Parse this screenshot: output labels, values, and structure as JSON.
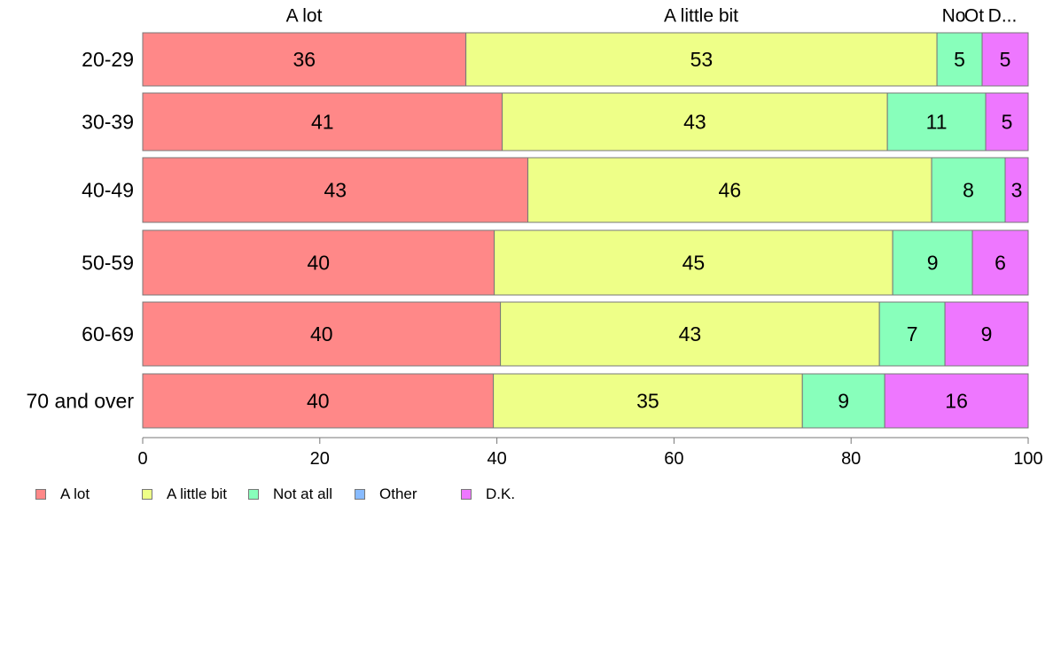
{
  "chart_data": {
    "type": "bar",
    "orientation": "horizontal",
    "stacked": true,
    "categories": [
      "20-29",
      "30-39",
      "40-49",
      "50-59",
      "60-69",
      "70 and over"
    ],
    "series": [
      {
        "name": "A lot",
        "color": "#ff8888",
        "values": [
          36,
          41,
          43,
          40,
          40,
          40
        ],
        "plotted": [
          36.5,
          40.6,
          43.5,
          39.7,
          40.4,
          39.6
        ]
      },
      {
        "name": "A little bit",
        "color": "#eeff88",
        "values": [
          53,
          43,
          46,
          45,
          43,
          35
        ],
        "plotted": [
          53.2,
          43.5,
          45.6,
          45.0,
          42.8,
          34.9
        ]
      },
      {
        "name": "Not at all",
        "color": "#88ffbb",
        "values": [
          5,
          11,
          8,
          9,
          7,
          9
        ],
        "plotted": [
          5.1,
          11.1,
          8.3,
          9.0,
          7.4,
          9.3
        ]
      },
      {
        "name": "Other",
        "color": "#88bbff",
        "values": [
          0,
          0,
          0,
          0,
          0,
          0
        ],
        "plotted": [
          0,
          0,
          0,
          0,
          0,
          0
        ]
      },
      {
        "name": "D.K.",
        "color": "#ee77ff",
        "values": [
          5,
          5,
          3,
          6,
          9,
          16
        ],
        "plotted": [
          5.2,
          4.8,
          2.6,
          6.3,
          9.4,
          16.2
        ]
      }
    ],
    "top_labels": [
      "A lot",
      "A little bit",
      "No",
      "Ot",
      "D..."
    ],
    "xlim": [
      0,
      100
    ],
    "xticks": [
      0,
      20,
      40,
      60,
      80,
      100
    ],
    "title": "",
    "xlabel": "",
    "ylabel": "",
    "grid": false,
    "legend": "bottom-left"
  }
}
